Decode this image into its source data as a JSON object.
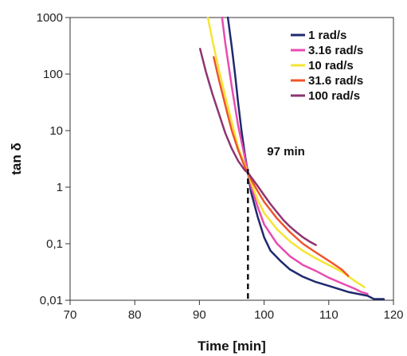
{
  "chart_data": {
    "type": "line",
    "xlabel": "Time [min]",
    "ylabel": "tan δ",
    "xlim": [
      70,
      120
    ],
    "ylim": [
      0.01,
      1000
    ],
    "y_scale": "log",
    "x_ticks": [
      70,
      80,
      90,
      100,
      110,
      120
    ],
    "x_tick_labels": [
      "70",
      "80",
      "90",
      "100",
      "110",
      "120"
    ],
    "y_ticks": [
      0.01,
      0.1,
      1,
      10,
      100,
      1000
    ],
    "y_tick_labels": [
      "0,01",
      "0,1",
      "1",
      "10",
      "100",
      "1000"
    ],
    "grid": false,
    "legend_position": "top-right",
    "annotation": {
      "text": "97 min",
      "x": 97.5
    },
    "series": [
      {
        "name": "1 rad/s",
        "color": "#1f2a6e",
        "points": [
          [
            94.4,
            1000
          ],
          [
            95.0,
            300
          ],
          [
            95.5,
            100
          ],
          [
            96.0,
            30
          ],
          [
            96.5,
            10
          ],
          [
            97.0,
            4
          ],
          [
            97.5,
            1.8
          ],
          [
            98.0,
            0.8
          ],
          [
            99.0,
            0.3
          ],
          [
            100.0,
            0.13
          ],
          [
            101.0,
            0.075
          ],
          [
            102.5,
            0.05
          ],
          [
            104.0,
            0.035
          ],
          [
            106.0,
            0.026
          ],
          [
            108.0,
            0.021
          ],
          [
            110.0,
            0.018
          ],
          [
            113.0,
            0.014
          ],
          [
            116.0,
            0.012
          ],
          [
            117.0,
            0.0105
          ],
          [
            118.5,
            0.0105
          ]
        ]
      },
      {
        "name": "3.16 rad/s",
        "color": "#e84bb0",
        "points": [
          [
            93.5,
            1000
          ],
          [
            94.0,
            350
          ],
          [
            95.0,
            60
          ],
          [
            96.0,
            12
          ],
          [
            97.0,
            3.5
          ],
          [
            97.5,
            1.8
          ],
          [
            98.0,
            1.0
          ],
          [
            99.0,
            0.45
          ],
          [
            100.0,
            0.22
          ],
          [
            102.0,
            0.1
          ],
          [
            104.0,
            0.06
          ],
          [
            106.0,
            0.042
          ],
          [
            108.0,
            0.033
          ],
          [
            110.0,
            0.025
          ],
          [
            112.0,
            0.02
          ],
          [
            114.0,
            0.016
          ],
          [
            115.0,
            0.014
          ],
          [
            116.0,
            0.013
          ]
        ]
      },
      {
        "name": "10 rad/s",
        "color": "#f6e432",
        "points": [
          [
            91.3,
            1000
          ],
          [
            92.0,
            400
          ],
          [
            93.0,
            120
          ],
          [
            94.0,
            40
          ],
          [
            95.0,
            14
          ],
          [
            96.0,
            5
          ],
          [
            97.0,
            2.5
          ],
          [
            97.5,
            1.8
          ],
          [
            98.0,
            1.2
          ],
          [
            99.0,
            0.6
          ],
          [
            100.0,
            0.35
          ],
          [
            102.0,
            0.18
          ],
          [
            104.0,
            0.11
          ],
          [
            106.0,
            0.075
          ],
          [
            108.0,
            0.055
          ],
          [
            110.0,
            0.042
          ],
          [
            112.0,
            0.032
          ],
          [
            114.0,
            0.022
          ],
          [
            115.5,
            0.017
          ]
        ]
      },
      {
        "name": "31.6 rad/s",
        "color": "#f0542a",
        "points": [
          [
            92.2,
            200
          ],
          [
            93.0,
            80
          ],
          [
            94.0,
            28
          ],
          [
            95.0,
            10
          ],
          [
            96.0,
            4.5
          ],
          [
            97.0,
            2.3
          ],
          [
            97.5,
            1.8
          ],
          [
            98.0,
            1.35
          ],
          [
            99.0,
            0.85
          ],
          [
            100.0,
            0.55
          ],
          [
            102.0,
            0.28
          ],
          [
            104.0,
            0.16
          ],
          [
            106.0,
            0.1
          ],
          [
            108.0,
            0.07
          ],
          [
            110.0,
            0.05
          ],
          [
            112.0,
            0.035
          ],
          [
            113.0,
            0.027
          ]
        ]
      },
      {
        "name": "100 rad/s",
        "color": "#8e3570",
        "points": [
          [
            90.1,
            280
          ],
          [
            91.0,
            110
          ],
          [
            92.0,
            45
          ],
          [
            93.0,
            20
          ],
          [
            94.0,
            9
          ],
          [
            95.0,
            4.8
          ],
          [
            96.0,
            2.9
          ],
          [
            97.0,
            2.0
          ],
          [
            97.5,
            1.8
          ],
          [
            98.0,
            1.5
          ],
          [
            99.0,
            1.05
          ],
          [
            100.0,
            0.72
          ],
          [
            101.0,
            0.5
          ],
          [
            102.0,
            0.36
          ],
          [
            103.0,
            0.26
          ],
          [
            104.0,
            0.2
          ],
          [
            105.0,
            0.16
          ],
          [
            106.0,
            0.13
          ],
          [
            107.0,
            0.11
          ],
          [
            108.0,
            0.095
          ]
        ]
      }
    ]
  }
}
